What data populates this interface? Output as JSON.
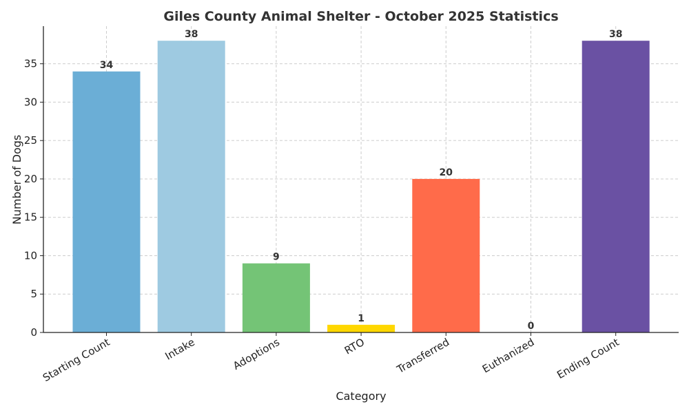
{
  "chart_data": {
    "type": "bar",
    "title": "Giles County Animal Shelter - October 2025 Statistics",
    "xlabel": "Category",
    "ylabel": "Number of Dogs",
    "categories": [
      "Starting Count",
      "Intake",
      "Adoptions",
      "RTO",
      "Transferred",
      "Euthanized",
      "Ending Count"
    ],
    "values": [
      34,
      38,
      9,
      1,
      20,
      0,
      38
    ],
    "colors": [
      "#6baed6",
      "#9ecae1",
      "#74c476",
      "#ffd700",
      "#ff6b4a",
      "#ff6b4a",
      "#6a51a3"
    ],
    "ylim": [
      0,
      39.9
    ],
    "yticks": [
      0,
      5,
      10,
      15,
      20,
      25,
      30,
      35
    ],
    "grid": true,
    "legend": "none"
  }
}
